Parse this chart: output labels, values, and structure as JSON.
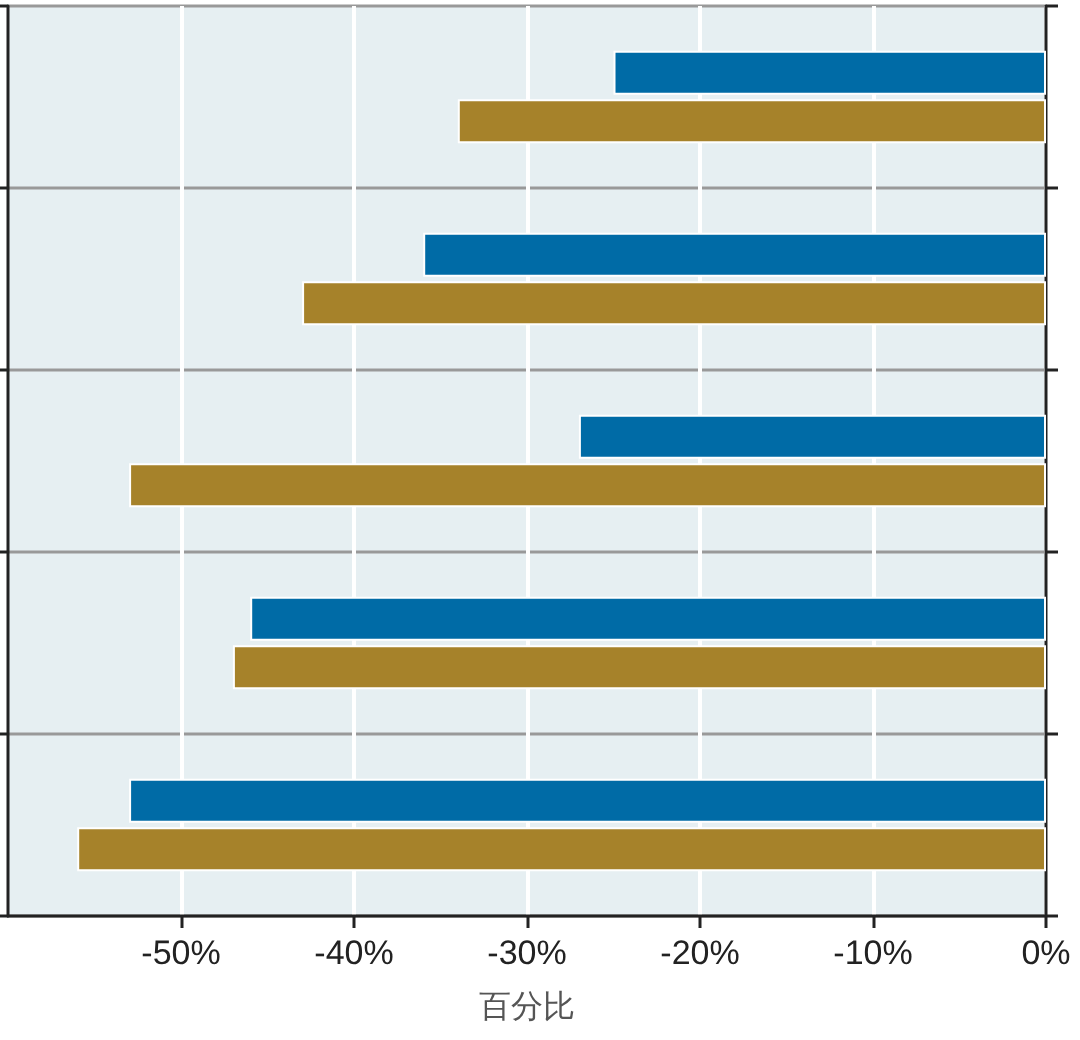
{
  "chart_data": {
    "type": "bar",
    "orientation": "horizontal",
    "xlabel": "百分比",
    "categories": [
      null,
      null,
      null,
      null,
      null
    ],
    "series": [
      {
        "color": "#006ba6",
        "values": [
          -25,
          -36,
          -27,
          -46,
          -53
        ]
      },
      {
        "color": "#a6822a",
        "values": [
          -34,
          -43,
          -53,
          -47,
          -56
        ]
      }
    ],
    "xlim": [
      -60,
      0
    ],
    "xticks": [
      {
        "value": -50,
        "label": "-50%"
      },
      {
        "value": -40,
        "label": "-40%"
      },
      {
        "value": -30,
        "label": "-30%"
      },
      {
        "value": -20,
        "label": "-20%"
      },
      {
        "value": -10,
        "label": "-10%"
      },
      {
        "value": 0,
        "label": "0%"
      }
    ],
    "grid": true,
    "tick_labels": "x"
  }
}
